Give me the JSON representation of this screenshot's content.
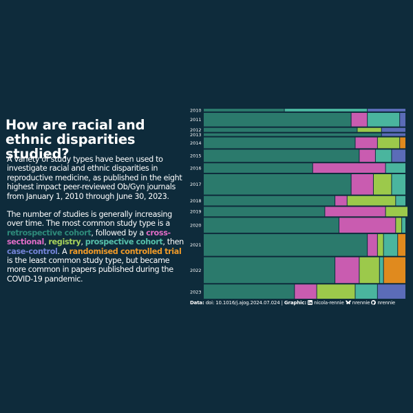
{
  "title": "How are racial and ethnic disparities studied?",
  "paragraph1": "A variety of study types have been used to investigate racial and ethnic disparities in reproductive medicine, as published in the eight highest impact peer-reviewed Ob/Gyn journals from January 1, 2010 through June 30, 2023.",
  "paragraph2": {
    "part1": "The number of studies is generally increasing over time. The most common study type is a",
    "kw_retro": "retrospective cohort",
    "part2": ", followed by a",
    "kw_cross": "cross-sectional",
    "sep1": ",",
    "kw_registry": "registry",
    "sep2": ",",
    "kw_prospective": "prospective cohort",
    "sep3": ", then",
    "kw_case": "case-control",
    "part3": ". A",
    "kw_rct": "randomised controlled trial",
    "part4": "is the least common study type, but became more common in papers published during the COVID-19 pandemic."
  },
  "caption": {
    "data_label": "Data:",
    "data_value": "doi: 10.1016/j.ajog.2024.07.024",
    "divider": "|",
    "graphic_label": "Graphic:",
    "linkedin": "nicola-rennie",
    "bluesky": "nrennie",
    "github": "nrennie"
  },
  "colors": {
    "background": "#0e2b3b",
    "retrospective_cohort": "#2b7a6c",
    "cross_sectional": "#c95cb0",
    "registry": "#9cc94b",
    "prospective_cohort": "#4ab59e",
    "case_control": "#5b6cb8",
    "randomised_controlled_trial": "#e08a1e",
    "cross_sectional_text": "#e06cc6",
    "registry_text": "#a8d35b",
    "prospective_text": "#56c0aa",
    "case_control_text": "#7383d6",
    "rct_text": "#f09a28",
    "retro_text": "#2e8a7a"
  },
  "chart_data": {
    "type": "mosaic",
    "categories": [
      "2010",
      "2011",
      "2012",
      "2013",
      "2014",
      "2015",
      "2016",
      "2017",
      "2018",
      "2019",
      "2020",
      "2021",
      "2022",
      "2023"
    ],
    "series_order": [
      "retrospective_cohort",
      "cross_sectional",
      "registry",
      "prospective_cohort",
      "case_control",
      "randomised_controlled_trial"
    ],
    "totals": [
      2,
      10,
      3,
      2,
      8,
      9,
      7,
      15,
      7,
      7,
      11,
      16,
      19,
      11
    ],
    "shares": [
      [
        0.4,
        0,
        0,
        0.41,
        0.19,
        0
      ],
      [
        0.73,
        0.08,
        0,
        0.16,
        0.03,
        0
      ],
      [
        0.76,
        0,
        0.12,
        0,
        0.12,
        0
      ],
      [
        0.88,
        0,
        0,
        0,
        0.12,
        0
      ],
      [
        0.75,
        0.11,
        0.11,
        0,
        0,
        0.03
      ],
      [
        0.77,
        0.08,
        0,
        0.08,
        0.07,
        0
      ],
      [
        0.54,
        0.36,
        0,
        0.1,
        0,
        0
      ],
      [
        0.73,
        0.11,
        0.09,
        0.07,
        0,
        0
      ],
      [
        0.65,
        0.06,
        0.24,
        0.05,
        0,
        0
      ],
      [
        0.6,
        0.3,
        0.12,
        0,
        0,
        0
      ],
      [
        0.67,
        0.28,
        0.03,
        0.02,
        0,
        0
      ],
      [
        0.81,
        0.05,
        0.03,
        0.07,
        0,
        0.04
      ],
      [
        0.65,
        0.12,
        0.1,
        0.02,
        0,
        0.11
      ],
      [
        0.45,
        0.11,
        0.19,
        0.11,
        0.14,
        0
      ]
    ]
  }
}
